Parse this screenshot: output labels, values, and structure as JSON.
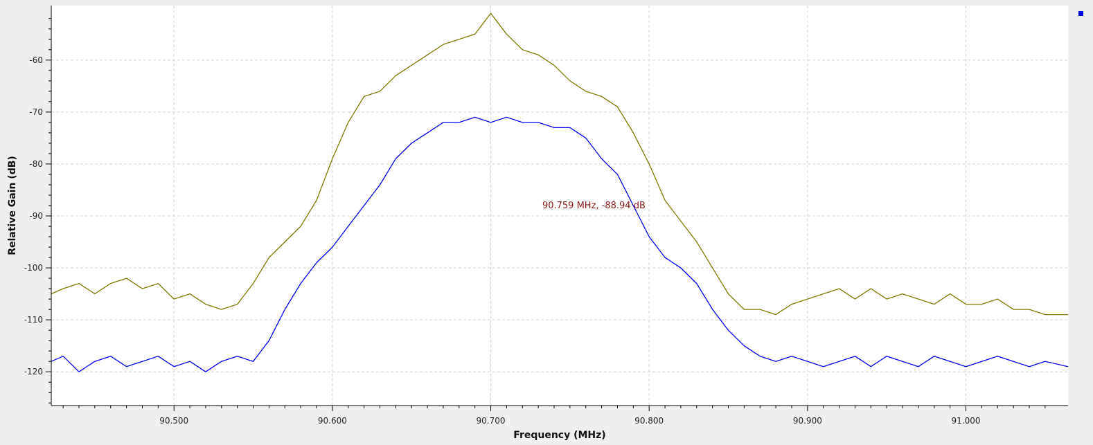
{
  "chart_data": {
    "type": "line",
    "xlabel": "Frequency (MHz)",
    "ylabel": "Relative Gain (dB)",
    "xlim": [
      90.4225,
      91.0645
    ],
    "ylim": [
      -126.5,
      -49.5
    ],
    "x_ticks": [
      90.5,
      90.6,
      90.7,
      90.8,
      90.9,
      91.0
    ],
    "x_tick_labels": [
      "90.500",
      "90.600",
      "90.700",
      "90.800",
      "90.900",
      "91.000"
    ],
    "y_ticks": [
      -60,
      -70,
      -80,
      -90,
      -100,
      -110,
      -120
    ],
    "y_tick_labels": [
      "-60",
      "-70",
      "-80",
      "-90",
      "-100",
      "-110",
      "-120"
    ],
    "grid": true,
    "legend": "top-right",
    "marker": {
      "label": "90.759 MHz, -88.94 dB",
      "x": 90.759,
      "y": -88.94
    },
    "series": [
      {
        "color": "#7f7a00",
        "x": [
          90.4225,
          90.43,
          90.44,
          90.45,
          90.46,
          90.47,
          90.48,
          90.49,
          90.5,
          90.51,
          90.52,
          90.53,
          90.54,
          90.55,
          90.56,
          90.57,
          90.58,
          90.59,
          90.6,
          90.61,
          90.62,
          90.63,
          90.64,
          90.65,
          90.66,
          90.67,
          90.68,
          90.69,
          90.7,
          90.71,
          90.72,
          90.73,
          90.74,
          90.75,
          90.76,
          90.77,
          90.78,
          90.79,
          90.8,
          90.81,
          90.82,
          90.83,
          90.84,
          90.85,
          90.86,
          90.87,
          90.88,
          90.89,
          90.9,
          90.91,
          90.92,
          90.93,
          90.94,
          90.95,
          90.96,
          90.97,
          90.98,
          90.99,
          91.0,
          91.01,
          91.02,
          91.03,
          91.04,
          91.05,
          91.0645
        ],
        "y": [
          -105,
          -104,
          -103,
          -105,
          -103,
          -102,
          -104,
          -103,
          -106,
          -105,
          -107,
          -108,
          -107,
          -103,
          -98,
          -95,
          -92,
          -87,
          -79,
          -72,
          -67,
          -66,
          -63,
          -61,
          -59,
          -57,
          -56,
          -55,
          -51,
          -55,
          -58,
          -59,
          -61,
          -64,
          -66,
          -67,
          -69,
          -74,
          -80,
          -87,
          -91,
          -95,
          -100,
          -105,
          -108,
          -108,
          -109,
          -107,
          -106,
          -105,
          -104,
          -106,
          -104,
          -106,
          -105,
          -106,
          -107,
          -105,
          -107,
          -107,
          -106,
          -108,
          -108,
          -109,
          -109
        ]
      },
      {
        "color": "#0000ee",
        "x": [
          90.4225,
          90.43,
          90.44,
          90.45,
          90.46,
          90.47,
          90.48,
          90.49,
          90.5,
          90.51,
          90.52,
          90.53,
          90.54,
          90.55,
          90.56,
          90.57,
          90.58,
          90.59,
          90.6,
          90.61,
          90.62,
          90.63,
          90.64,
          90.65,
          90.66,
          90.67,
          90.68,
          90.69,
          90.7,
          90.71,
          90.72,
          90.73,
          90.74,
          90.75,
          90.76,
          90.77,
          90.78,
          90.79,
          90.8,
          90.81,
          90.82,
          90.83,
          90.84,
          90.85,
          90.86,
          90.87,
          90.88,
          90.89,
          90.9,
          90.91,
          90.92,
          90.93,
          90.94,
          90.95,
          90.96,
          90.97,
          90.98,
          90.99,
          91.0,
          91.01,
          91.02,
          91.03,
          91.04,
          91.05,
          91.0645
        ],
        "y": [
          -118,
          -117,
          -120,
          -118,
          -117,
          -119,
          -118,
          -117,
          -119,
          -118,
          -120,
          -118,
          -117,
          -118,
          -114,
          -108,
          -103,
          -99,
          -96,
          -92,
          -88,
          -84,
          -79,
          -76,
          -74,
          -72,
          -72,
          -71,
          -72,
          -71,
          -72,
          -72,
          -73,
          -73,
          -75,
          -79,
          -82,
          -88,
          -94,
          -98,
          -100,
          -103,
          -108,
          -112,
          -115,
          -117,
          -118,
          -117,
          -118,
          -119,
          -118,
          -117,
          -119,
          -117,
          -118,
          -119,
          -117,
          -118,
          -119,
          -118,
          -117,
          -118,
          -119,
          -118,
          -119
        ]
      }
    ]
  }
}
